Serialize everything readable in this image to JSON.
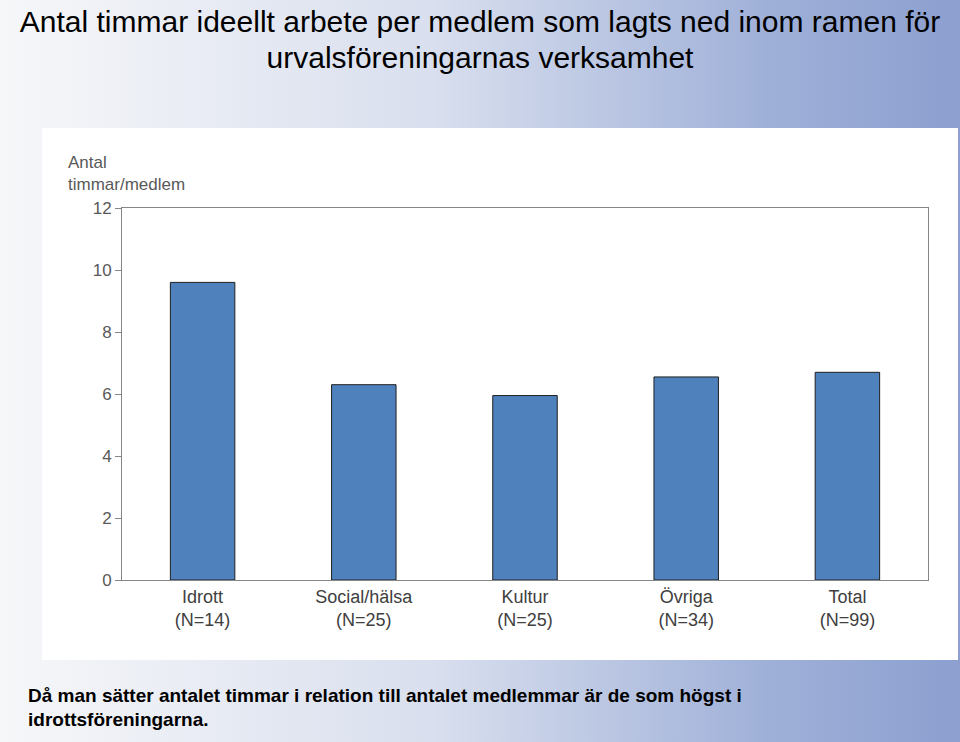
{
  "chart_data": {
    "type": "bar",
    "title": "Antal timmar ideellt arbete per medlem som lagts ned inom ramen för urvalsföreningarnas verksamhet",
    "ylabel": "Antal timmar/medlem",
    "categories": [
      "Idrott (N=14)",
      "Social/hälsa (N=25)",
      "Kultur (N=25)",
      "Övriga (N=34)",
      "Total (N=99)"
    ],
    "values": [
      9.6,
      6.3,
      5.95,
      6.55,
      6.7
    ],
    "color": "#4f81bd",
    "ylim": [
      0,
      12
    ],
    "yticks": [
      0,
      2,
      4,
      6,
      8,
      10,
      12
    ],
    "grid": false,
    "annotations": [
      "Då man sätter antalet timmar i relation till antalet medlemmar är de som högst i idrottsföreningarna."
    ]
  }
}
